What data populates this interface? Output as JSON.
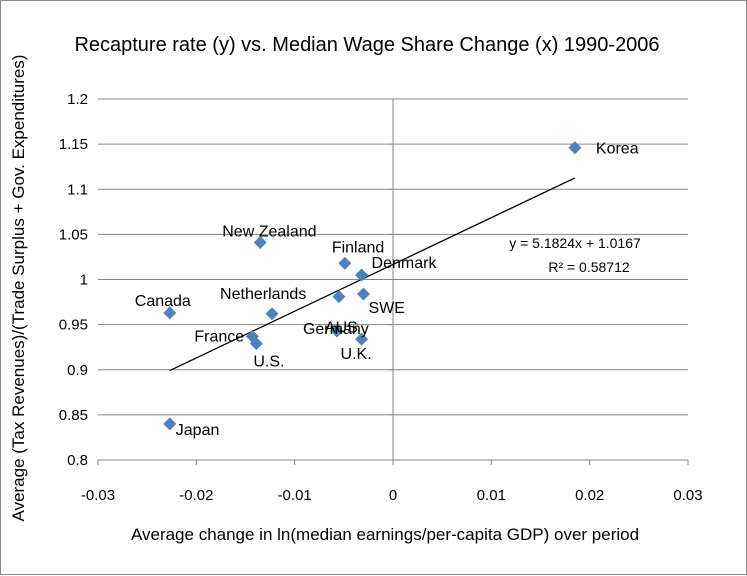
{
  "chart_data": {
    "type": "scatter",
    "title": "Recapture rate (y)  vs. Median Wage Share Change (x) 1990-2006",
    "xlabel": "Average change in ln(median earnings/per-capita GDP) over period",
    "ylabel": "Average (Tax Revenues)/(Trade Surplus + Gov. Expenditures)",
    "xlim": [
      -0.03,
      0.03
    ],
    "ylim": [
      0.8,
      1.2
    ],
    "x_ticks": [
      -0.03,
      -0.02,
      -0.01,
      0,
      0.01,
      0.02,
      0.03
    ],
    "x_tick_labels": [
      "-0.03",
      "-0.02",
      "-0.01",
      "0",
      "0.01",
      "0.02",
      "0.03"
    ],
    "y_ticks": [
      0.8,
      0.85,
      0.9,
      0.95,
      1.0,
      1.05,
      1.1,
      1.15,
      1.2
    ],
    "y_tick_labels": [
      "0.8",
      "0.85",
      "0.9",
      "0.95",
      "1",
      "1.05",
      "1.1",
      "1.15",
      "1.2"
    ],
    "grid": "horizontal",
    "marker_color": "#4f81bd",
    "trendline_color": "#000000",
    "points": [
      {
        "label": "Korea",
        "x": 0.0185,
        "y": 1.146
      },
      {
        "label": "New Zealand",
        "x": -0.0135,
        "y": 1.041
      },
      {
        "label": "Finland",
        "x": -0.0049,
        "y": 1.018
      },
      {
        "label": "Denmark",
        "x": -0.0032,
        "y": 1.005
      },
      {
        "label": "Canada",
        "x": -0.0227,
        "y": 0.963
      },
      {
        "label": "Netherlands",
        "x": -0.0123,
        "y": 0.962
      },
      {
        "label": "AUS",
        "x": -0.0055,
        "y": 0.981
      },
      {
        "label": "SWE",
        "x": -0.003,
        "y": 0.984
      },
      {
        "label": "France",
        "x": -0.0143,
        "y": 0.937
      },
      {
        "label": "U.S.",
        "x": -0.0139,
        "y": 0.929
      },
      {
        "label": "Germany",
        "x": -0.0057,
        "y": 0.943
      },
      {
        "label": "U.K.",
        "x": -0.0032,
        "y": 0.934
      },
      {
        "label": "Japan",
        "x": -0.0227,
        "y": 0.84
      }
    ],
    "trendline": {
      "slope": 5.1824,
      "intercept": 1.0167,
      "x_range": [
        -0.0227,
        0.0185
      ],
      "equation": "y = 5.1824x + 1.0167",
      "r_squared": "R² = 0.58712"
    }
  }
}
